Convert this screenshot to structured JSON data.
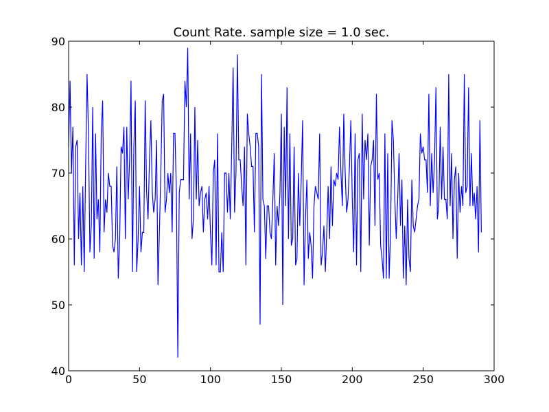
{
  "chart_data": {
    "type": "line",
    "title": "Count Rate. sample size = 1.0 sec.",
    "xlabel": "",
    "ylabel": "",
    "xlim": [
      0,
      300
    ],
    "ylim": [
      40,
      90
    ],
    "xticks": [
      0,
      50,
      100,
      150,
      200,
      250,
      300
    ],
    "yticks": [
      40,
      50,
      60,
      70,
      80,
      90
    ],
    "grid": false,
    "legend": "none",
    "line_color": "#0000ff",
    "series": [
      {
        "values": [
          74,
          84,
          70,
          77,
          56,
          74,
          75,
          60,
          67,
          56,
          68,
          55,
          71,
          85,
          76,
          58,
          62,
          80,
          57,
          76,
          63,
          66,
          58,
          76,
          81,
          61,
          66,
          64,
          70,
          68,
          68,
          59,
          58,
          60,
          71,
          54,
          60,
          74,
          73,
          77,
          60,
          77,
          66,
          72,
          84,
          55,
          74,
          81,
          55,
          60,
          68,
          58,
          61,
          61,
          81,
          67,
          63,
          72,
          78,
          67,
          64,
          66,
          75,
          53,
          61,
          70,
          81,
          82,
          64,
          66,
          70,
          67,
          70,
          61,
          76,
          76,
          67,
          42,
          67,
          69,
          69,
          69,
          84,
          80,
          89,
          66,
          76,
          60,
          63,
          80,
          66,
          75,
          65,
          67,
          68,
          61,
          66,
          67,
          63,
          68,
          61,
          56,
          70,
          72,
          56,
          76,
          55,
          55,
          61,
          55,
          70,
          70,
          64,
          70,
          63,
          74,
          86,
          64,
          70,
          88,
          72,
          72,
          68,
          65,
          74,
          56,
          79,
          76,
          74,
          71,
          71,
          61,
          76,
          76,
          74,
          47,
          85,
          66,
          65,
          57,
          65,
          65,
          61,
          60,
          66,
          73,
          56,
          65,
          62,
          67,
          79,
          50,
          77,
          65,
          83,
          60,
          76,
          59,
          60,
          74,
          56,
          57,
          70,
          62,
          69,
          78,
          53,
          63,
          69,
          57,
          61,
          59,
          54,
          65,
          68,
          67,
          66,
          76,
          56,
          58,
          62,
          55,
          61,
          68,
          60,
          71,
          62,
          69,
          68,
          70,
          69,
          77,
          70,
          65,
          79,
          70,
          64,
          66,
          71,
          78,
          66,
          58,
          76,
          56,
          72,
          73,
          55,
          79,
          66,
          75,
          72,
          76,
          59,
          71,
          72,
          75,
          62,
          82,
          69,
          70,
          59,
          57,
          54,
          76,
          54,
          73,
          54,
          61,
          78,
          75,
          66,
          60,
          66,
          73,
          62,
          69,
          54,
          62,
          53,
          66,
          57,
          55,
          69,
          62,
          61,
          63,
          65,
          66,
          76,
          73,
          74,
          72,
          72,
          67,
          82,
          65,
          73,
          67,
          72,
          83,
          63,
          65,
          77,
          66,
          74,
          66,
          66,
          63,
          85,
          65,
          73,
          60,
          69,
          71,
          57,
          70,
          64,
          68,
          65,
          85,
          67,
          68,
          83,
          65,
          73,
          65,
          67,
          63,
          68,
          58,
          78,
          61
        ]
      }
    ]
  }
}
